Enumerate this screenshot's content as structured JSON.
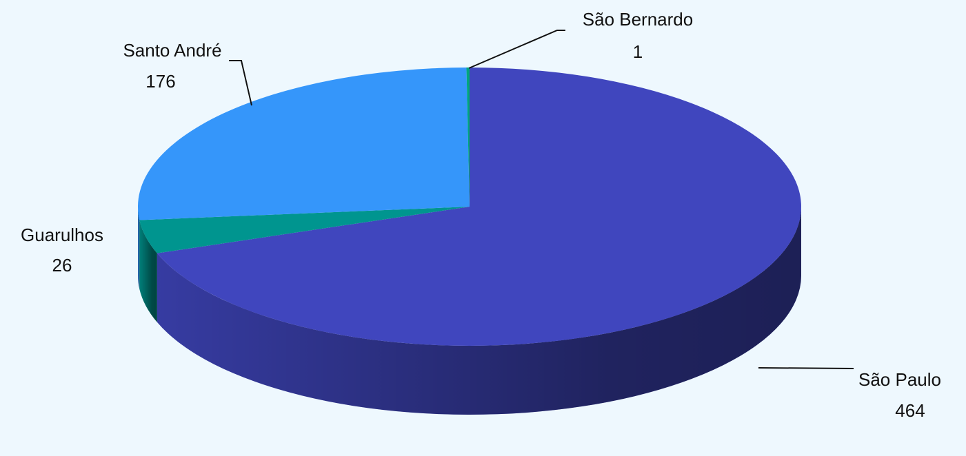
{
  "chart_data": {
    "type": "pie",
    "categories": [
      "São Paulo",
      "Guarulhos",
      "Santo André",
      "São Bernardo"
    ],
    "values": [
      464,
      26,
      176,
      1
    ],
    "colors": [
      "#4046be",
      "#00958f",
      "#3596fa",
      "#00a67e"
    ]
  }
}
